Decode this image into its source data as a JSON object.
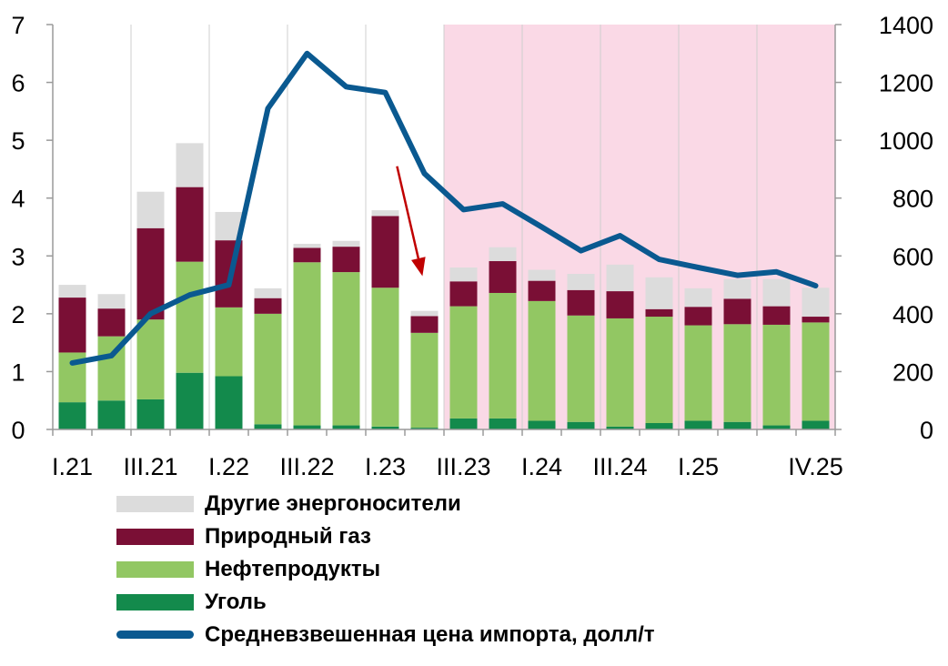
{
  "chart_data": {
    "type": "bar",
    "stacked": true,
    "categories": [
      "I.21",
      "II.21",
      "III.21",
      "IV.21",
      "I.22",
      "II.22",
      "III.22",
      "IV.22",
      "I.23",
      "II.23",
      "III.23",
      "IV.23",
      "I.24",
      "II.24",
      "III.24",
      "IV.24",
      "I.25",
      "II.25",
      "III.25",
      "IV.25"
    ],
    "x_tick_labels": [
      "I.21",
      "",
      "III.21",
      "",
      "I.22",
      "",
      "III.22",
      "",
      "I.23",
      "",
      "III.23",
      "",
      "I.24",
      "",
      "III.24",
      "",
      "I.25",
      "",
      "",
      "IV.25"
    ],
    "ylim": [
      0,
      7
    ],
    "y_ticks": [
      "0",
      "1",
      "2",
      "3",
      "4",
      "5",
      "6",
      "7"
    ],
    "y2lim": [
      0,
      1400
    ],
    "y2_ticks": [
      "0",
      "200",
      "400",
      "600",
      "800",
      "1000",
      "1200",
      "1400"
    ],
    "forecast_shade": {
      "from_category": "III.23",
      "to_category": "IV.25",
      "color": "#fad9e6"
    },
    "grid": "vertical",
    "series": [
      {
        "name": "Уголь",
        "color": "#138a4c",
        "values": [
          0.47,
          0.5,
          0.52,
          0.98,
          0.92,
          0.09,
          0.07,
          0.07,
          0.05,
          0.03,
          0.19,
          0.19,
          0.15,
          0.13,
          0.05,
          0.11,
          0.15,
          0.13,
          0.07,
          0.15
        ]
      },
      {
        "name": "Нефтепродукты",
        "color": "#92c763",
        "values": [
          0.86,
          1.11,
          1.38,
          1.92,
          1.19,
          1.91,
          2.82,
          2.65,
          2.4,
          1.64,
          1.94,
          2.17,
          2.07,
          1.84,
          1.87,
          1.84,
          1.65,
          1.69,
          1.74,
          1.7
        ]
      },
      {
        "name": "Природный газ",
        "color": "#7a0f35",
        "values": [
          0.95,
          0.48,
          1.58,
          1.29,
          1.16,
          0.27,
          0.25,
          0.44,
          1.24,
          0.29,
          0.43,
          0.55,
          0.35,
          0.44,
          0.47,
          0.13,
          0.32,
          0.44,
          0.32,
          0.1
        ]
      },
      {
        "name": "Другие энергоносители",
        "color": "#dcdcdc",
        "values": [
          0.22,
          0.25,
          0.63,
          0.76,
          0.49,
          0.17,
          0.07,
          0.1,
          0.1,
          0.09,
          0.24,
          0.24,
          0.19,
          0.28,
          0.46,
          0.55,
          0.32,
          0.34,
          0.47,
          0.5
        ]
      }
    ],
    "line": {
      "name": "Средневзвешенная цена импорта, долл/т",
      "axis": "right",
      "color": "#0a5990",
      "values": [
        230,
        255,
        400,
        465,
        500,
        1110,
        1300,
        1185,
        1165,
        885,
        760,
        780,
        700,
        618,
        670,
        588,
        560,
        533,
        545,
        497
      ]
    },
    "annotation": {
      "type": "arrow",
      "color": "#c00000",
      "from": [
        8.3,
        4.55
      ],
      "to": [
        8.95,
        2.65
      ]
    }
  },
  "legend": {
    "items": [
      {
        "label": "Другие энергоносители",
        "color": "#dcdcdc",
        "kind": "box"
      },
      {
        "label": "Природный газ",
        "color": "#7a0f35",
        "kind": "box"
      },
      {
        "label": "Нефтепродукты",
        "color": "#92c763",
        "kind": "box"
      },
      {
        "label": "Уголь",
        "color": "#138a4c",
        "kind": "box"
      },
      {
        "label": "Средневзвешенная цена импорта, долл/т",
        "color": "#0a5990",
        "kind": "line"
      }
    ]
  }
}
